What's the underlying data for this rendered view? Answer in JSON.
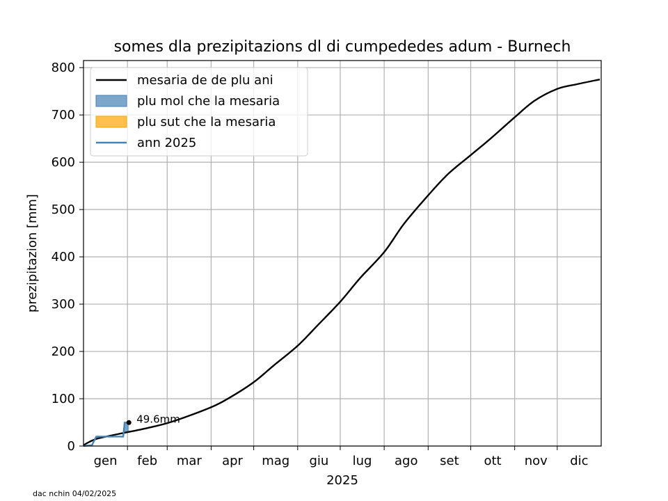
{
  "chart_data": {
    "type": "line",
    "title": "somes dla prezipitazions dl di cumpededes adum - Burnech",
    "xlabel": "2025",
    "ylabel": "prezipitazion [mm]",
    "ylim": [
      0,
      815
    ],
    "yticks": [
      0,
      100,
      200,
      300,
      400,
      500,
      600,
      700,
      800
    ],
    "month_labels": [
      "gen",
      "feb",
      "mar",
      "apr",
      "mag",
      "giu",
      "lug",
      "ago",
      "set",
      "ott",
      "nov",
      "dic"
    ],
    "grid": true,
    "legend_position": "upper left",
    "legend": [
      {
        "label": "mesaria de de plu ani",
        "type": "line",
        "color": "#000000"
      },
      {
        "label": "plu mol che la mesaria",
        "type": "fill",
        "color": "#4682b4"
      },
      {
        "label": "plu sut che la mesaria",
        "type": "fill",
        "color": "#ffa500"
      },
      {
        "label": "ann 2025",
        "type": "line",
        "color": "#4682b4"
      }
    ],
    "series": [
      {
        "name": "mesaria de de plu ani",
        "x": [
          "2025-01-01",
          "2025-01-10",
          "2025-01-25",
          "2025-02-15",
          "2025-03-05",
          "2025-04-01",
          "2025-04-15",
          "2025-05-01",
          "2025-05-15",
          "2025-06-01",
          "2025-06-15",
          "2025-07-01",
          "2025-07-15",
          "2025-08-01",
          "2025-08-15",
          "2025-09-01",
          "2025-09-15",
          "2025-10-01",
          "2025-10-15",
          "2025-11-01",
          "2025-11-15",
          "2025-12-01",
          "2025-12-15",
          "2025-12-31"
        ],
        "y": [
          2,
          15,
          25,
          38,
          52,
          82,
          104,
          135,
          170,
          212,
          255,
          305,
          355,
          410,
          470,
          530,
          575,
          615,
          650,
          695,
          730,
          755,
          765,
          775
        ]
      },
      {
        "name": "ann 2025",
        "x": [
          "2025-01-01",
          "2025-01-07",
          "2025-01-10",
          "2025-01-29",
          "2025-01-30",
          "2025-02-02"
        ],
        "y": [
          0,
          2,
          20,
          20,
          49.6,
          49.6
        ]
      }
    ],
    "annotations": [
      {
        "text": "49.6mm",
        "x": "2025-02-02",
        "y": 49.6
      }
    ],
    "footnote": "dac nchin 04/02/2025"
  }
}
